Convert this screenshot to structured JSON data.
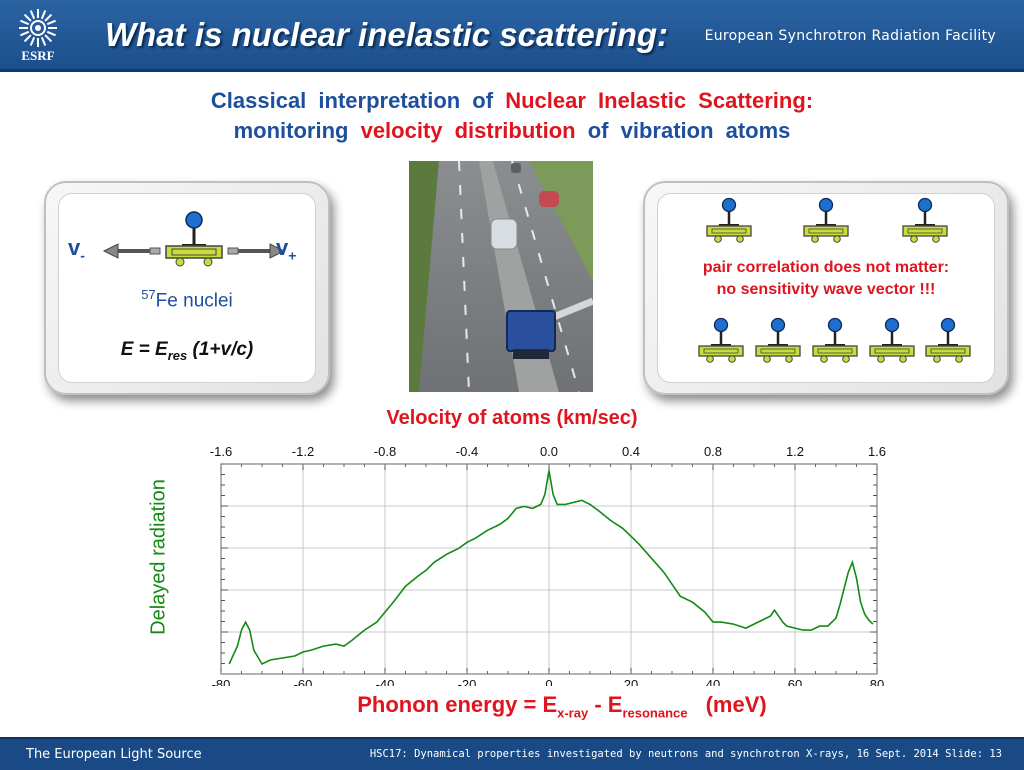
{
  "header": {
    "logo_text": "ESRF",
    "title": "What is nuclear inelastic scattering:",
    "facility": "European Synchrotron Radiation Facility"
  },
  "subtitle": {
    "line1_a": "Classical interpretation of",
    "line1_b": "Nuclear Inelastic Scattering:",
    "line2_a": "monitoring",
    "line2_b": "velocity distribution",
    "line2_c": "of vibration atoms"
  },
  "left_panel": {
    "v_minus": "v",
    "v_minus_sub": "-",
    "v_plus": "v",
    "v_plus_sub": "+",
    "nuclei_sup": "57",
    "nuclei": "Fe nuclei",
    "eq_lhs": "E = E",
    "eq_sub": "res",
    "eq_rhs": " (1+v/c)"
  },
  "right_panel": {
    "line1": "pair correlation does not matter:",
    "line2": "no sensitivity wave vector !!!"
  },
  "colors": {
    "header_blue": "#1c4f8c",
    "title_blue": "#1d4f9c",
    "accent_red": "#e0141e",
    "curve_green": "#138a13",
    "atom_blue": "#1f6fd0",
    "cart_yellow": "#c8dc3c"
  },
  "footer": {
    "left": "The European Light Source",
    "right": "HSC17: Dynamical properties investigated by neutrons and synchrotron X-rays, 16 Sept. 2014",
    "slide_label": "Slide: 13"
  },
  "chart_data": {
    "type": "line",
    "top_title": "Velocity of atoms (km/sec)",
    "top_ticks": [
      "-1.6",
      "-1.2",
      "-0.8",
      "-0.4",
      "0.0",
      "0.4",
      "0.8",
      "1.2",
      "1.6"
    ],
    "xlabel_main": "Phonon energy = E",
    "xlabel_sub1": "x-ray",
    "xlabel_mid": " - E",
    "xlabel_sub2": "resonance",
    "xlabel_unit": "(meV)",
    "ylabel": "Delayed radiation",
    "xlim": [
      -80,
      80
    ],
    "ylim": [
      0,
      1
    ],
    "x_ticks": [
      "-80",
      "-60",
      "-40",
      "-20",
      "0",
      "20",
      "40",
      "60",
      "80"
    ],
    "grid": true,
    "series": [
      {
        "color": "#138a13",
        "x": [
          -78,
          -76,
          -75,
          -74,
          -73,
          -72,
          -70,
          -68,
          -65,
          -62,
          -60,
          -58,
          -55,
          -52,
          -50,
          -48,
          -45,
          -42,
          -40,
          -38,
          -35,
          -32,
          -30,
          -28,
          -25,
          -22,
          -20,
          -18,
          -15,
          -12,
          -10,
          -8,
          -6,
          -4,
          -2,
          -1,
          0,
          1,
          2,
          4,
          6,
          8,
          10,
          12,
          15,
          18,
          20,
          22,
          25,
          28,
          30,
          32,
          35,
          38,
          40,
          42,
          45,
          48,
          50,
          52,
          54,
          55,
          56,
          57,
          58,
          60,
          62,
          64,
          66,
          68,
          70,
          71,
          72,
          73,
          74,
          75,
          76,
          77,
          78,
          79
        ],
        "y": [
          0.03,
          0.12,
          0.2,
          0.24,
          0.2,
          0.1,
          0.03,
          0.05,
          0.06,
          0.07,
          0.09,
          0.1,
          0.12,
          0.13,
          0.12,
          0.15,
          0.2,
          0.24,
          0.29,
          0.34,
          0.42,
          0.47,
          0.5,
          0.54,
          0.58,
          0.61,
          0.64,
          0.66,
          0.7,
          0.73,
          0.76,
          0.81,
          0.82,
          0.81,
          0.83,
          0.88,
          1.0,
          0.88,
          0.83,
          0.83,
          0.84,
          0.85,
          0.83,
          0.8,
          0.75,
          0.71,
          0.67,
          0.63,
          0.56,
          0.49,
          0.43,
          0.37,
          0.34,
          0.29,
          0.24,
          0.24,
          0.23,
          0.21,
          0.23,
          0.25,
          0.27,
          0.3,
          0.27,
          0.24,
          0.22,
          0.21,
          0.2,
          0.2,
          0.22,
          0.22,
          0.26,
          0.33,
          0.41,
          0.49,
          0.54,
          0.46,
          0.34,
          0.28,
          0.25,
          0.23
        ]
      }
    ]
  }
}
